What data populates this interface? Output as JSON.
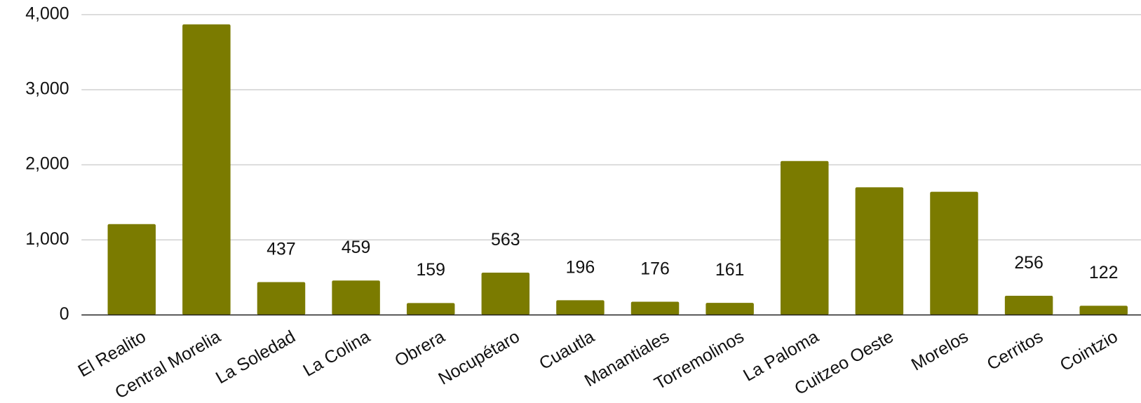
{
  "chart_data": {
    "type": "bar",
    "categories": [
      "El Realito",
      "Central Morelia",
      "La Soledad",
      "La Colina",
      "Obrera",
      "Nocupétaro",
      "Cuautla",
      "Manantiales",
      "Torremolinos",
      "La Paloma",
      "Cuitzeo Oeste",
      "Morelos",
      "Cerritos",
      "Cointzio"
    ],
    "values": [
      1210,
      3870,
      437,
      459,
      159,
      563,
      196,
      176,
      161,
      2050,
      1700,
      1640,
      256,
      122
    ],
    "value_labels": [
      null,
      null,
      "437",
      "459",
      "159",
      "563",
      "196",
      "176",
      "161",
      null,
      null,
      null,
      "256",
      "122"
    ],
    "color": "#7b7b00",
    "ylim": [
      0,
      4000
    ],
    "yticks": [
      0,
      {
        "value": 1000,
        "label": "1,000"
      },
      {
        "value": 2000,
        "label": "2,000"
      },
      {
        "value": 3000,
        "label": "3,000"
      },
      {
        "value": 4000,
        "label": "4,000"
      }
    ],
    "grid": true
  }
}
